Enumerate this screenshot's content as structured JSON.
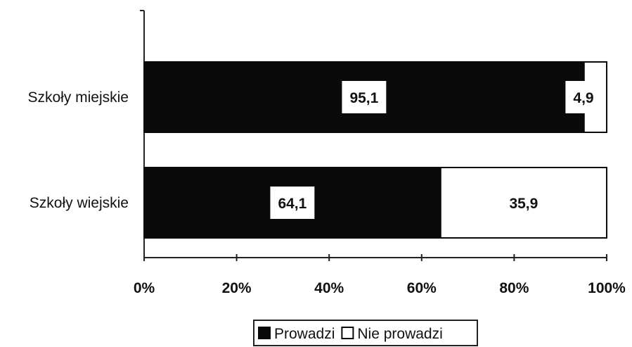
{
  "chart_data": {
    "type": "bar",
    "orientation": "horizontal",
    "stacked": "100%",
    "categories": [
      "Szkoły miejskie",
      "Szkoły wiejskie"
    ],
    "series": [
      {
        "name": "Prowadzi",
        "values": [
          95.1,
          64.1
        ],
        "color": "#0a0a0a"
      },
      {
        "name": "Nie prowadzi",
        "values": [
          4.9,
          35.9
        ],
        "color": "#ffffff"
      }
    ],
    "data_labels": [
      [
        "95,1",
        "64,1"
      ],
      [
        "4,9",
        "35,9"
      ]
    ],
    "x_ticks": [
      "0%",
      "20%",
      "40%",
      "60%",
      "80%",
      "100%"
    ],
    "xlim": [
      0,
      100
    ],
    "title": "",
    "xlabel": "",
    "ylabel": "",
    "grid": false,
    "legend_position": "bottom-center"
  }
}
